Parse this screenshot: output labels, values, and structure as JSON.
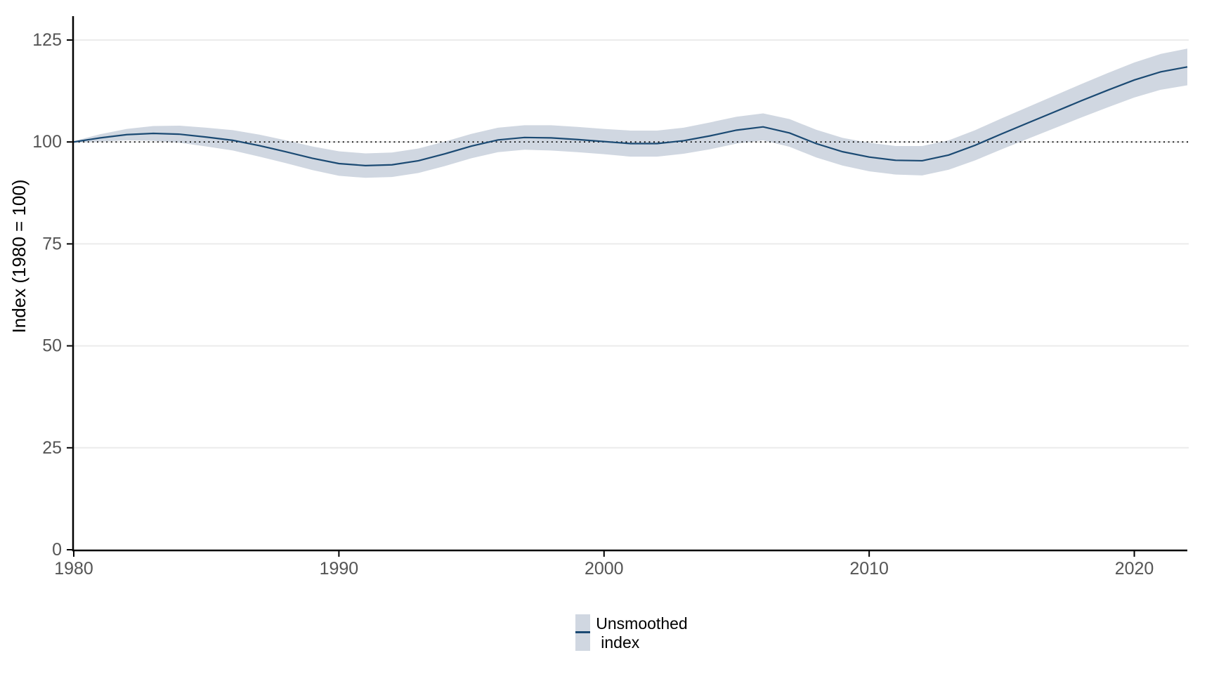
{
  "chart_data": {
    "type": "line",
    "ylabel": "Index (1980 = 100)",
    "xlabel": "",
    "x": [
      1980,
      1981,
      1982,
      1983,
      1984,
      1985,
      1986,
      1987,
      1988,
      1989,
      1990,
      1991,
      1992,
      1993,
      1994,
      1995,
      1996,
      1997,
      1998,
      1999,
      2000,
      2001,
      2002,
      2003,
      2004,
      2005,
      2006,
      2007,
      2008,
      2009,
      2010,
      2011,
      2012,
      2013,
      2014,
      2015,
      2016,
      2017,
      2018,
      2019,
      2020,
      2021,
      2022
    ],
    "series": [
      {
        "name": "Unsmoothed index",
        "values": [
          100.0,
          101.0,
          101.8,
          102.1,
          101.9,
          101.2,
          100.4,
          99.1,
          97.6,
          96.0,
          94.7,
          94.2,
          94.4,
          95.4,
          97.1,
          99.0,
          100.5,
          101.1,
          101.0,
          100.6,
          100.1,
          99.6,
          99.6,
          100.3,
          101.5,
          102.9,
          103.7,
          102.2,
          99.6,
          97.6,
          96.3,
          95.5,
          95.4,
          96.8,
          99.2,
          102.0,
          104.7,
          107.4,
          110.1,
          112.7,
          115.2,
          117.2,
          118.4
        ],
        "band_halfwidth": [
          0.2,
          0.9,
          1.4,
          1.8,
          2.1,
          2.3,
          2.5,
          2.7,
          2.8,
          2.9,
          3.0,
          3.0,
          3.0,
          3.0,
          3.0,
          3.0,
          3.0,
          3.0,
          3.1,
          3.1,
          3.1,
          3.2,
          3.2,
          3.2,
          3.3,
          3.3,
          3.3,
          3.4,
          3.4,
          3.4,
          3.5,
          3.5,
          3.6,
          3.6,
          3.7,
          3.8,
          3.9,
          4.0,
          4.1,
          4.2,
          4.3,
          4.4,
          4.5
        ]
      }
    ],
    "reference_line_y": 100,
    "xlim": [
      1980,
      2022
    ],
    "ylim": [
      0,
      125
    ],
    "yticks": [
      0,
      25,
      50,
      75,
      100,
      125
    ],
    "xticks": [
      1980,
      1990,
      2000,
      2010,
      2020
    ],
    "grid": "horizontal",
    "legend_position": "bottom-center",
    "colors": {
      "line": "#1b4a73",
      "band": "#d0d7e1",
      "grid": "#ebebeb",
      "axis": "#000000",
      "tick_label": "#555555",
      "reference_line": "#000000",
      "axis_title": "#000000"
    }
  },
  "legend": {
    "items": [
      {
        "line1": "Unsmoothed",
        "line2": "index",
        "swatch_fill": "#d0d7e1",
        "swatch_line": "#1b4a73"
      }
    ]
  }
}
